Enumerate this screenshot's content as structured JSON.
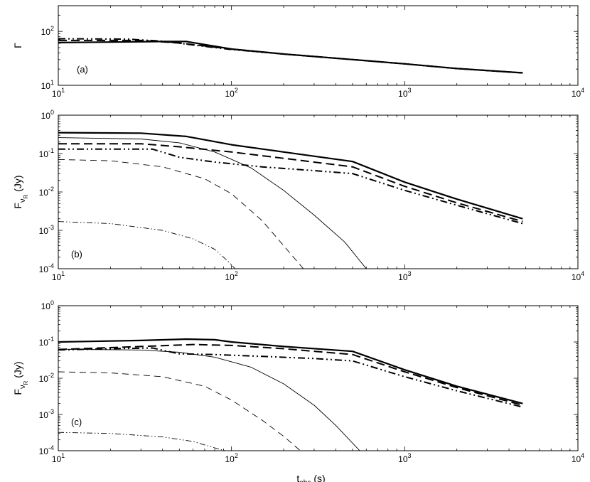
{
  "chart_data": [
    {
      "type": "line",
      "panel_label": "(a)",
      "ylabel": "Γ",
      "xscale": "log",
      "yscale": "log",
      "xlim": [
        10,
        10000
      ],
      "ylim": [
        10,
        300
      ],
      "x_ticks": [
        {
          "v": 10,
          "b": "10",
          "e": "1"
        },
        {
          "v": 100,
          "b": "10",
          "e": "2"
        },
        {
          "v": 1000,
          "b": "10",
          "e": "3"
        },
        {
          "v": 10000,
          "b": "10",
          "e": "4"
        }
      ],
      "y_ticks": [
        {
          "v": 10,
          "b": "10",
          "e": "1"
        },
        {
          "v": 100,
          "b": "10",
          "e": "2"
        }
      ],
      "series": [
        {
          "style": "thick-solid",
          "x": [
            10,
            40,
            55,
            100,
            200,
            500,
            1000,
            2000,
            4800
          ],
          "y": [
            62,
            65,
            65,
            47,
            38,
            30,
            25,
            20.5,
            17
          ]
        },
        {
          "style": "thick-dash",
          "x": [
            10,
            30,
            50,
            100,
            200,
            500,
            1000,
            2000,
            4800
          ],
          "y": [
            68,
            68,
            61,
            47,
            38,
            30,
            25,
            20.5,
            17
          ]
        },
        {
          "style": "thick-dashdot",
          "x": [
            10,
            25,
            40,
            60,
            100,
            200,
            500,
            1000,
            2000,
            4800
          ],
          "y": [
            73,
            72,
            66,
            56,
            46,
            38,
            30,
            25,
            20.5,
            17
          ]
        }
      ]
    },
    {
      "type": "line",
      "panel_label": "(b)",
      "ylabel": "F",
      "ylabel_sub": "ν",
      "ylabel_subsub": "R",
      "ylabel_unit": "(Jy)",
      "xscale": "log",
      "yscale": "log",
      "xlim": [
        10,
        10000
      ],
      "ylim": [
        0.0001,
        1
      ],
      "x_ticks": [
        {
          "v": 10,
          "b": "10",
          "e": "1"
        },
        {
          "v": 100,
          "b": "10",
          "e": "2"
        },
        {
          "v": 1000,
          "b": "10",
          "e": "3"
        },
        {
          "v": 10000,
          "b": "10",
          "e": "4"
        }
      ],
      "y_ticks": [
        {
          "v": 0.0001,
          "b": "10",
          "e": "-4"
        },
        {
          "v": 0.001,
          "b": "10",
          "e": "-3"
        },
        {
          "v": 0.01,
          "b": "10",
          "e": "-2"
        },
        {
          "v": 0.1,
          "b": "10",
          "e": "-1"
        },
        {
          "v": 1,
          "b": "10",
          "e": "0"
        }
      ],
      "series": [
        {
          "style": "thick-solid",
          "x": [
            10,
            30,
            55,
            100,
            200,
            500,
            1000,
            2000,
            4800
          ],
          "y": [
            0.35,
            0.34,
            0.28,
            0.17,
            0.11,
            0.062,
            0.018,
            0.0065,
            0.002
          ]
        },
        {
          "style": "thick-dash",
          "x": [
            10,
            30,
            50,
            100,
            200,
            500,
            1000,
            2000,
            4800
          ],
          "y": [
            0.18,
            0.18,
            0.15,
            0.11,
            0.075,
            0.045,
            0.014,
            0.0052,
            0.0017
          ]
        },
        {
          "style": "thick-dashdot",
          "x": [
            10,
            20,
            35,
            50,
            80,
            150,
            300,
            500,
            1000,
            2000,
            4800
          ],
          "y": [
            0.13,
            0.13,
            0.13,
            0.08,
            0.06,
            0.045,
            0.036,
            0.03,
            0.011,
            0.0045,
            0.0015
          ]
        },
        {
          "style": "thin-solid",
          "x": [
            10,
            30,
            50,
            80,
            130,
            200,
            300,
            450,
            600
          ],
          "y": [
            0.26,
            0.24,
            0.19,
            0.11,
            0.042,
            0.011,
            0.0025,
            0.0005,
            0.0001
          ]
        },
        {
          "style": "thin-dash",
          "x": [
            10,
            20,
            40,
            70,
            100,
            150,
            200,
            260
          ],
          "y": [
            0.07,
            0.065,
            0.045,
            0.022,
            0.009,
            0.0018,
            0.0004,
            0.0001
          ]
        },
        {
          "style": "thin-dashdot",
          "x": [
            10,
            20,
            40,
            60,
            80,
            95,
            105
          ],
          "y": [
            0.0017,
            0.0015,
            0.001,
            0.0006,
            0.00032,
            0.00016,
            0.0001
          ]
        }
      ]
    },
    {
      "type": "line",
      "panel_label": "(c)",
      "ylabel": "F",
      "ylabel_sub": "ν",
      "ylabel_subsub": "R",
      "ylabel_unit": "(Jy)",
      "xlabel": "t",
      "xlabel_sub": "obs",
      "xlabel_unit": "(s)",
      "xscale": "log",
      "yscale": "log",
      "xlim": [
        10,
        10000
      ],
      "ylim": [
        0.0001,
        1
      ],
      "x_ticks": [
        {
          "v": 10,
          "b": "10",
          "e": "1"
        },
        {
          "v": 100,
          "b": "10",
          "e": "2"
        },
        {
          "v": 1000,
          "b": "10",
          "e": "3"
        },
        {
          "v": 10000,
          "b": "10",
          "e": "4"
        }
      ],
      "y_ticks": [
        {
          "v": 0.0001,
          "b": "10",
          "e": "-4"
        },
        {
          "v": 0.001,
          "b": "10",
          "e": "-3"
        },
        {
          "v": 0.01,
          "b": "10",
          "e": "-2"
        },
        {
          "v": 0.1,
          "b": "10",
          "e": "-1"
        },
        {
          "v": 1,
          "b": "10",
          "e": "0"
        }
      ],
      "series": [
        {
          "style": "thick-solid",
          "x": [
            10,
            30,
            55,
            80,
            100,
            200,
            500,
            1000,
            2000,
            4800
          ],
          "y": [
            0.1,
            0.11,
            0.12,
            0.115,
            0.1,
            0.075,
            0.055,
            0.017,
            0.006,
            0.002
          ]
        },
        {
          "style": "thick-dash",
          "x": [
            10,
            30,
            60,
            100,
            200,
            500,
            1000,
            2000,
            4800
          ],
          "y": [
            0.062,
            0.075,
            0.085,
            0.08,
            0.065,
            0.045,
            0.015,
            0.0055,
            0.0018
          ]
        },
        {
          "style": "thick-dashdot",
          "x": [
            10,
            20,
            35,
            50,
            80,
            150,
            300,
            500,
            1000,
            2000,
            4800
          ],
          "y": [
            0.06,
            0.065,
            0.068,
            0.047,
            0.045,
            0.04,
            0.035,
            0.03,
            0.011,
            0.0045,
            0.0016
          ]
        },
        {
          "style": "thin-solid",
          "x": [
            10,
            30,
            50,
            80,
            130,
            200,
            300,
            400,
            550
          ],
          "y": [
            0.063,
            0.06,
            0.052,
            0.038,
            0.02,
            0.007,
            0.0018,
            0.0005,
            0.0001
          ]
        },
        {
          "style": "thin-dash",
          "x": [
            10,
            20,
            40,
            70,
            100,
            150,
            200,
            250
          ],
          "y": [
            0.015,
            0.014,
            0.011,
            0.006,
            0.0025,
            0.0007,
            0.00025,
            0.0001
          ]
        },
        {
          "style": "thin-dashdot",
          "x": [
            10,
            20,
            40,
            60,
            80,
            92
          ],
          "y": [
            0.00032,
            0.0003,
            0.00024,
            0.00018,
            0.00012,
            0.0001
          ]
        }
      ]
    }
  ]
}
